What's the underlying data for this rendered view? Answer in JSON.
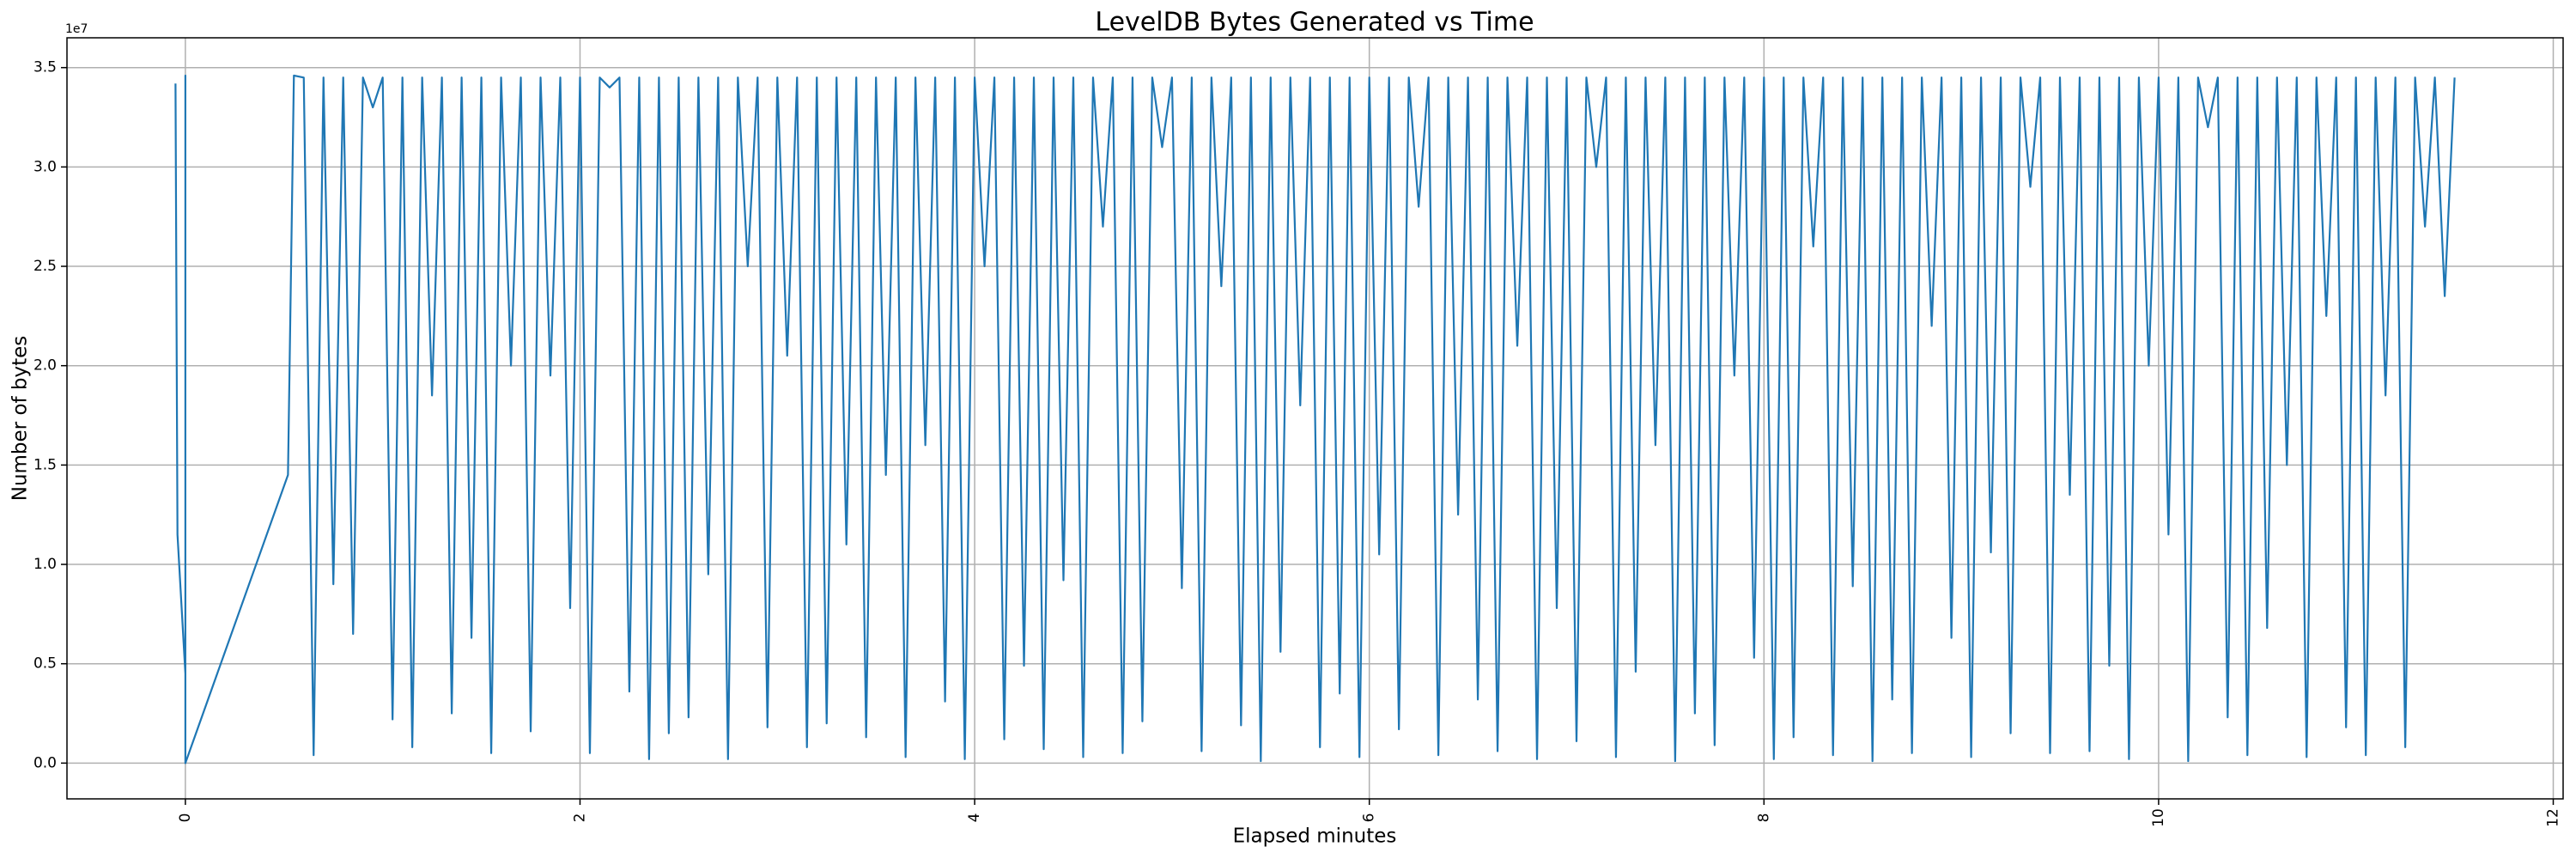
{
  "chart_data": {
    "type": "line",
    "title": "LevelDB Bytes Generated vs Time",
    "xlabel": "Elapsed minutes",
    "ylabel": "Number of bytes",
    "y_offset_label": "1e7",
    "color": "#1f77b4",
    "grid": true,
    "xlim": [
      -0.6,
      12.05
    ],
    "ylim": [
      -1800000,
      36500000
    ],
    "xticks": [
      0,
      2,
      4,
      6,
      8,
      10,
      12
    ],
    "yticks": [
      {
        "value": 0,
        "label": "0.0"
      },
      {
        "value": 5000000,
        "label": "0.5"
      },
      {
        "value": 10000000,
        "label": "1.0"
      },
      {
        "value": 15000000,
        "label": "1.5"
      },
      {
        "value": 20000000,
        "label": "2.0"
      },
      {
        "value": 25000000,
        "label": "2.5"
      },
      {
        "value": 30000000,
        "label": "3.0"
      },
      {
        "value": 35000000,
        "label": "3.5"
      }
    ],
    "x": [
      -0.05,
      -0.04,
      0,
      0,
      0,
      0.52,
      0.55,
      0.6,
      0.65,
      0.7,
      0.75,
      0.8,
      0.85,
      0.9,
      0.95,
      1.0,
      1.05,
      1.1,
      1.15,
      1.2,
      1.25,
      1.3,
      1.35,
      1.4,
      1.45,
      1.5,
      1.55,
      1.6,
      1.65,
      1.7,
      1.75,
      1.8,
      1.85,
      1.9,
      1.95,
      2.0,
      2.05,
      2.1,
      2.15,
      2.2,
      2.25,
      2.3,
      2.35,
      2.4,
      2.45,
      2.5,
      2.55,
      2.6,
      2.65,
      2.7,
      2.75,
      2.8,
      2.85,
      2.9,
      2.95,
      3.0,
      3.05,
      3.1,
      3.15,
      3.2,
      3.25,
      3.3,
      3.35,
      3.4,
      3.45,
      3.5,
      3.55,
      3.6,
      3.65,
      3.7,
      3.75,
      3.8,
      3.85,
      3.9,
      3.95,
      4.0,
      4.05,
      4.1,
      4.15,
      4.2,
      4.25,
      4.3,
      4.35,
      4.4,
      4.45,
      4.5,
      4.55,
      4.6,
      4.65,
      4.7,
      4.75,
      4.8,
      4.85,
      4.9,
      4.95,
      5.0,
      5.05,
      5.1,
      5.15,
      5.2,
      5.25,
      5.3,
      5.35,
      5.4,
      5.45,
      5.5,
      5.55,
      5.6,
      5.65,
      5.7,
      5.75,
      5.8,
      5.85,
      5.9,
      5.95,
      6.0,
      6.05,
      6.1,
      6.15,
      6.2,
      6.25,
      6.3,
      6.35,
      6.4,
      6.45,
      6.5,
      6.55,
      6.6,
      6.65,
      6.7,
      6.75,
      6.8,
      6.85,
      6.9,
      6.95,
      7.0,
      7.05,
      7.1,
      7.15,
      7.2,
      7.25,
      7.3,
      7.35,
      7.4,
      7.45,
      7.5,
      7.55,
      7.6,
      7.65,
      7.7,
      7.75,
      7.8,
      7.85,
      7.9,
      7.95,
      8.0,
      8.05,
      8.1,
      8.15,
      8.2,
      8.25,
      8.3,
      8.35,
      8.4,
      8.45,
      8.5,
      8.55,
      8.6,
      8.65,
      8.7,
      8.75,
      8.8,
      8.85,
      8.9,
      8.95,
      9.0,
      9.05,
      9.1,
      9.15,
      9.2,
      9.25,
      9.3,
      9.35,
      9.4,
      9.45,
      9.5,
      9.55,
      9.6,
      9.65,
      9.7,
      9.75,
      9.8,
      9.85,
      9.9,
      9.95,
      10.0,
      10.05,
      10.1,
      10.15,
      10.2,
      10.25,
      10.3,
      10.35,
      10.4,
      10.45,
      10.5,
      10.55,
      10.6,
      10.65,
      10.7,
      10.75,
      10.8,
      10.85,
      10.9,
      10.95,
      11.0,
      11.05,
      11.1,
      11.15,
      11.2,
      11.25,
      11.3,
      11.35,
      11.4,
      11.45,
      11.5
    ],
    "values": [
      34200000,
      11500000,
      4500000,
      34600000,
      0,
      14500000,
      34600000,
      34500000,
      400000,
      34500000,
      9000000,
      34500000,
      6500000,
      34500000,
      33000000,
      34500000,
      2200000,
      34500000,
      800000,
      34500000,
      18500000,
      34500000,
      2500000,
      34500000,
      6300000,
      34500000,
      500000,
      34500000,
      20000000,
      34500000,
      1600000,
      34500000,
      19500000,
      34500000,
      7800000,
      34500000,
      500000,
      34500000,
      34000000,
      34500000,
      3600000,
      34500000,
      200000,
      34500000,
      1500000,
      34500000,
      2300000,
      34500000,
      9500000,
      34500000,
      200000,
      34500000,
      25000000,
      34500000,
      1800000,
      34500000,
      20500000,
      34500000,
      800000,
      34500000,
      2000000,
      34500000,
      11000000,
      34500000,
      1300000,
      34500000,
      14500000,
      34500000,
      300000,
      34500000,
      16000000,
      34500000,
      3100000,
      34500000,
      200000,
      34500000,
      25000000,
      34500000,
      1200000,
      34500000,
      4900000,
      34500000,
      700000,
      34500000,
      9200000,
      34500000,
      300000,
      34500000,
      27000000,
      34500000,
      500000,
      34500000,
      2100000,
      34500000,
      31000000,
      34500000,
      8800000,
      34500000,
      600000,
      34500000,
      24000000,
      34500000,
      1900000,
      34500000,
      100000,
      34500000,
      5600000,
      34500000,
      18000000,
      34500000,
      800000,
      34500000,
      3500000,
      34500000,
      300000,
      34500000,
      10500000,
      34500000,
      1700000,
      34500000,
      28000000,
      34500000,
      400000,
      34500000,
      12500000,
      34500000,
      3200000,
      34500000,
      600000,
      34500000,
      21000000,
      34500000,
      200000,
      34500000,
      7800000,
      34500000,
      1100000,
      34500000,
      30000000,
      34500000,
      300000,
      34500000,
      4600000,
      34500000,
      16000000,
      34500000,
      100000,
      34500000,
      2500000,
      34500000,
      900000,
      34500000,
      19500000,
      34500000,
      5300000,
      34500000,
      200000,
      34500000,
      1300000,
      34500000,
      26000000,
      34500000,
      400000,
      34500000,
      8900000,
      34500000,
      100000,
      34500000,
      3200000,
      34500000,
      500000,
      34500000,
      22000000,
      34500000,
      6300000,
      34500000,
      300000,
      34500000,
      10600000,
      34500000,
      1500000,
      34500000,
      29000000,
      34500000,
      500000,
      34500000,
      13500000,
      34500000,
      600000,
      34500000,
      4900000,
      34500000,
      200000,
      34500000,
      20000000,
      34500000,
      11500000,
      34500000,
      100000,
      34500000,
      32000000,
      34500000,
      2300000,
      34500000,
      400000,
      34500000,
      6800000,
      34500000,
      15000000,
      34500000,
      300000,
      34500000,
      22500000,
      34500000,
      1800000,
      34500000,
      400000,
      34500000,
      18500000,
      34500000,
      800000,
      34500000,
      27000000,
      34500000,
      23500000,
      34500000
    ]
  }
}
